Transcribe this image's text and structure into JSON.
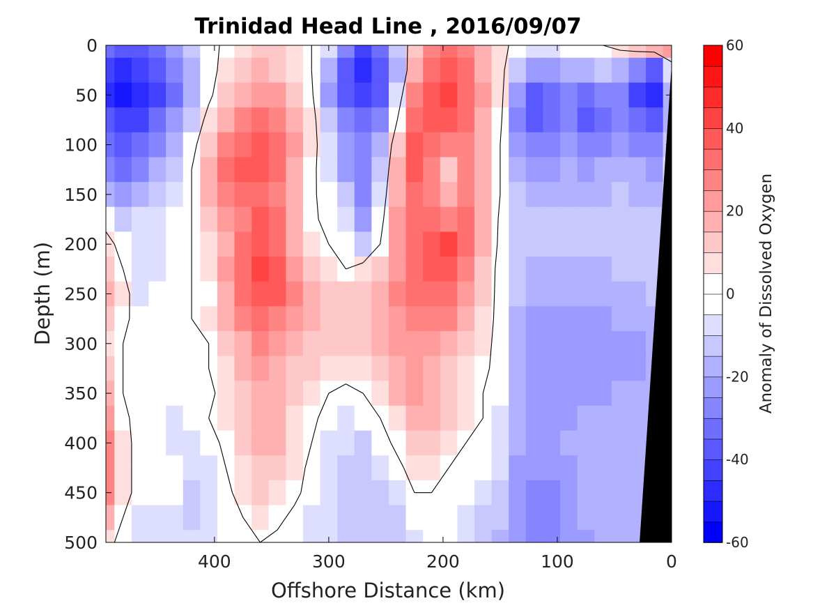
{
  "chart_data": {
    "type": "heatmap",
    "title": "Trinidad Head Line , 2016/09/07",
    "xlabel": "Offshore Distance (km)",
    "ylabel": "Depth (m)",
    "xlim": [
      495,
      0
    ],
    "ylim": [
      0,
      500
    ],
    "x_reversed": true,
    "y_reversed": true,
    "x_ticks": [
      "400",
      "300",
      "200",
      "100",
      "0"
    ],
    "y_ticks": [
      "0",
      "50",
      "100",
      "150",
      "200",
      "250",
      "300",
      "350",
      "400",
      "450",
      "500"
    ],
    "colorbar": {
      "label": "Anomaly of Dissolved Oxygen",
      "range": [
        -60,
        60
      ],
      "step": 5,
      "ticks": [
        "60",
        "40",
        "20",
        "0",
        "-20",
        "-40",
        "-60"
      ],
      "neg_color": "#0000ff",
      "pos_color": "#ff0000",
      "mid_color": "#ffffff"
    },
    "zero_contour": "on",
    "bathymetry_mask_color": "#000000",
    "bathymetry_mask": [
      [
        28,
        500
      ],
      [
        0,
        500
      ],
      [
        0,
        20
      ]
    ],
    "x": [
      495,
      480,
      465,
      450,
      435,
      420,
      405,
      390,
      375,
      360,
      345,
      330,
      315,
      300,
      285,
      270,
      255,
      240,
      225,
      210,
      195,
      180,
      165,
      150,
      135,
      120,
      105,
      90,
      75,
      60,
      45,
      30,
      15,
      0
    ],
    "y": [
      0,
      25,
      50,
      75,
      100,
      125,
      150,
      175,
      200,
      225,
      250,
      275,
      300,
      325,
      350,
      375,
      400,
      425,
      450,
      475,
      500
    ],
    "z": [
      [
        -35,
        -40,
        -38,
        -32,
        -25,
        -15,
        -5,
        3,
        8,
        12,
        10,
        5,
        0,
        -10,
        -30,
        -42,
        -35,
        -15,
        10,
        25,
        30,
        25,
        15,
        5,
        -5,
        -10,
        -8,
        -5,
        -3,
        0,
        5,
        10,
        15,
        20
      ],
      [
        -45,
        -48,
        -45,
        -38,
        -30,
        -18,
        -5,
        5,
        12,
        16,
        14,
        8,
        0,
        -20,
        -40,
        -48,
        -40,
        -20,
        15,
        30,
        35,
        30,
        18,
        5,
        -15,
        -25,
        -22,
        -18,
        -20,
        -15,
        -20,
        -30,
        -40,
        -10
      ],
      [
        -48,
        -52,
        -50,
        -42,
        -32,
        -20,
        -3,
        10,
        18,
        22,
        20,
        12,
        2,
        -22,
        -40,
        -45,
        -38,
        -10,
        25,
        38,
        40,
        32,
        20,
        5,
        -25,
        -38,
        -32,
        -28,
        -35,
        -28,
        -30,
        -45,
        -50,
        -20
      ],
      [
        -40,
        -45,
        -42,
        -35,
        -25,
        -12,
        5,
        18,
        25,
        30,
        28,
        18,
        5,
        -15,
        -30,
        -35,
        -28,
        0,
        30,
        35,
        38,
        30,
        18,
        3,
        -28,
        -40,
        -35,
        -30,
        -38,
        -35,
        -28,
        -35,
        -40,
        -20
      ],
      [
        -35,
        -38,
        -35,
        -28,
        -20,
        -5,
        12,
        25,
        32,
        35,
        32,
        20,
        5,
        -10,
        -25,
        -30,
        -20,
        10,
        35,
        30,
        28,
        28,
        15,
        0,
        -22,
        -30,
        -28,
        -25,
        -28,
        -28,
        -22,
        -28,
        -30,
        -15
      ],
      [
        -30,
        -32,
        -28,
        -20,
        -12,
        0,
        18,
        30,
        35,
        35,
        30,
        18,
        3,
        -8,
        -22,
        -28,
        -15,
        15,
        35,
        25,
        12,
        25,
        15,
        0,
        -18,
        -22,
        -22,
        -20,
        -22,
        -20,
        -18,
        -20,
        -22,
        -10
      ],
      [
        -20,
        -25,
        -20,
        -15,
        -8,
        0,
        15,
        25,
        30,
        32,
        28,
        15,
        2,
        -5,
        -15,
        -30,
        -10,
        18,
        32,
        28,
        15,
        28,
        15,
        0,
        -15,
        -18,
        -18,
        -18,
        -18,
        -18,
        -15,
        -18,
        -18,
        -10
      ],
      [
        -5,
        -12,
        -10,
        -8,
        -5,
        0,
        10,
        20,
        28,
        35,
        30,
        15,
        2,
        -3,
        -10,
        -25,
        -5,
        20,
        30,
        32,
        28,
        30,
        15,
        -2,
        -15,
        -15,
        -15,
        -15,
        -15,
        -15,
        -15,
        -15,
        -15,
        -10
      ],
      [
        5,
        -5,
        -10,
        -8,
        -3,
        0,
        8,
        18,
        30,
        38,
        32,
        18,
        5,
        0,
        -5,
        -15,
        0,
        20,
        30,
        38,
        40,
        30,
        15,
        -3,
        -15,
        -15,
        -15,
        -15,
        -15,
        -15,
        -15,
        -15,
        -15,
        -10
      ],
      [
        10,
        0,
        -10,
        -8,
        -3,
        0,
        5,
        20,
        32,
        40,
        35,
        22,
        10,
        5,
        0,
        5,
        10,
        22,
        32,
        35,
        35,
        28,
        12,
        -5,
        -15,
        -18,
        -18,
        -18,
        -18,
        -18,
        -15,
        -15,
        -15,
        -10
      ],
      [
        15,
        5,
        -8,
        -5,
        0,
        0,
        3,
        18,
        30,
        35,
        35,
        25,
        15,
        12,
        10,
        12,
        15,
        25,
        32,
        32,
        30,
        22,
        10,
        -5,
        -15,
        -20,
        -20,
        -20,
        -20,
        -20,
        -18,
        -18,
        -15,
        -10
      ],
      [
        12,
        3,
        -5,
        -5,
        -3,
        0,
        5,
        15,
        25,
        30,
        28,
        20,
        15,
        12,
        10,
        12,
        15,
        22,
        28,
        28,
        25,
        18,
        8,
        -5,
        -18,
        -22,
        -22,
        -22,
        -22,
        -22,
        -20,
        -20,
        -18,
        -10
      ],
      [
        5,
        0,
        -5,
        -5,
        -3,
        0,
        0,
        10,
        18,
        25,
        22,
        15,
        12,
        10,
        10,
        12,
        15,
        20,
        22,
        20,
        15,
        10,
        5,
        -5,
        -20,
        -25,
        -25,
        -25,
        -25,
        -25,
        -22,
        -22,
        -20,
        -10
      ],
      [
        10,
        0,
        -5,
        -5,
        -5,
        -5,
        0,
        8,
        15,
        20,
        18,
        12,
        10,
        8,
        5,
        5,
        10,
        18,
        22,
        18,
        12,
        8,
        3,
        -5,
        -20,
        -25,
        -25,
        -25,
        -25,
        -25,
        -22,
        -22,
        -20,
        -10
      ],
      [
        18,
        0,
        -5,
        -5,
        -5,
        -5,
        -3,
        5,
        12,
        15,
        15,
        10,
        5,
        0,
        -3,
        0,
        5,
        15,
        20,
        18,
        12,
        5,
        0,
        -5,
        -20,
        -25,
        -25,
        -25,
        -22,
        -22,
        -20,
        -20,
        -18,
        -10
      ],
      [
        22,
        3,
        -5,
        -5,
        -8,
        -5,
        0,
        5,
        10,
        15,
        15,
        8,
        3,
        -5,
        -10,
        -5,
        0,
        8,
        15,
        15,
        10,
        5,
        0,
        -8,
        -20,
        -22,
        -22,
        -22,
        -20,
        -20,
        -18,
        -18,
        -18,
        -10
      ],
      [
        25,
        5,
        -5,
        -3,
        -8,
        -10,
        -5,
        3,
        10,
        15,
        15,
        8,
        0,
        -8,
        -10,
        -12,
        -5,
        3,
        10,
        10,
        5,
        0,
        -3,
        -8,
        -20,
        -22,
        -22,
        -20,
        -18,
        -18,
        -18,
        -18,
        -18,
        -10
      ],
      [
        28,
        5,
        -5,
        0,
        -5,
        -10,
        -8,
        0,
        8,
        12,
        12,
        5,
        -3,
        -8,
        -12,
        -15,
        -10,
        -3,
        5,
        5,
        0,
        -3,
        -5,
        -10,
        -22,
        -25,
        -25,
        -22,
        -20,
        -18,
        -18,
        -18,
        -18,
        -10
      ],
      [
        25,
        5,
        -5,
        -3,
        -5,
        -12,
        -8,
        -3,
        5,
        10,
        8,
        3,
        -5,
        -10,
        -12,
        -15,
        -12,
        -8,
        0,
        0,
        -3,
        -5,
        -8,
        -12,
        -25,
        -28,
        -28,
        -22,
        -20,
        -20,
        -18,
        -18,
        -18,
        -10
      ],
      [
        15,
        0,
        -8,
        -8,
        -8,
        -12,
        -10,
        -5,
        0,
        5,
        3,
        -3,
        -8,
        -10,
        -12,
        -15,
        -15,
        -12,
        -5,
        -3,
        -5,
        -8,
        -12,
        -15,
        -25,
        -30,
        -28,
        -22,
        -20,
        -20,
        -18,
        -18,
        -18,
        -10
      ],
      [
        5,
        -5,
        -10,
        -10,
        -10,
        -10,
        -8,
        -5,
        -3,
        0,
        -3,
        -5,
        -8,
        -10,
        -12,
        -15,
        -15,
        -15,
        -10,
        -5,
        -5,
        -10,
        -12,
        -18,
        -25,
        -30,
        -28,
        -22,
        -22,
        -20,
        -18,
        -18,
        -18,
        -10
      ]
    ]
  }
}
